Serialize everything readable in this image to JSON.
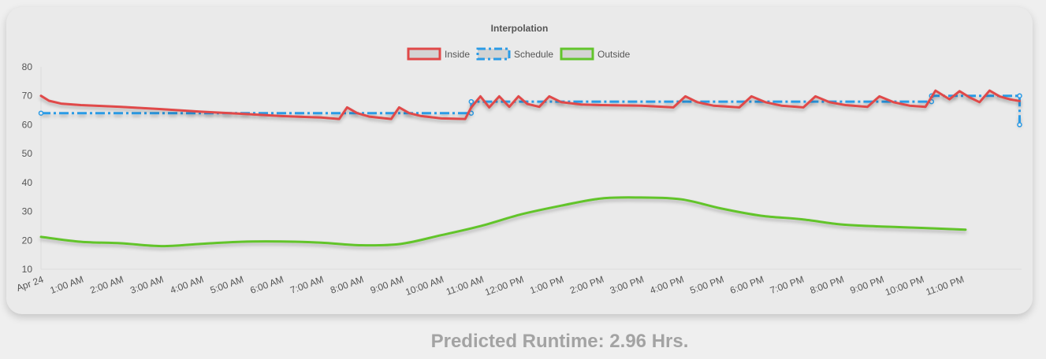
{
  "colors": {
    "inside": "#e04848",
    "schedule": "#2b9be6",
    "outside": "#62c42c",
    "background": "#eaeaea"
  },
  "footer": {
    "runtime_text": "Predicted Runtime: 2.96 Hrs."
  },
  "chart_data": {
    "type": "line",
    "title": "Interpolation",
    "legend_position": "top-center",
    "xlabel": "",
    "ylabel": "",
    "ylim": [
      10,
      80
    ],
    "yticks": [
      10,
      20,
      30,
      40,
      50,
      60,
      70,
      80
    ],
    "xlim": [
      0,
      24.5
    ],
    "xticks": [
      {
        "hour": 0,
        "label": "Apr 24"
      },
      {
        "hour": 1,
        "label": "1:00 AM"
      },
      {
        "hour": 2,
        "label": "2:00 AM"
      },
      {
        "hour": 3,
        "label": "3:00 AM"
      },
      {
        "hour": 4,
        "label": "4:00 AM"
      },
      {
        "hour": 5,
        "label": "5:00 AM"
      },
      {
        "hour": 6,
        "label": "6:00 AM"
      },
      {
        "hour": 7,
        "label": "7:00 AM"
      },
      {
        "hour": 8,
        "label": "8:00 AM"
      },
      {
        "hour": 9,
        "label": "9:00 AM"
      },
      {
        "hour": 10,
        "label": "10:00 AM"
      },
      {
        "hour": 11,
        "label": "11:00 AM"
      },
      {
        "hour": 12,
        "label": "12:00 PM"
      },
      {
        "hour": 13,
        "label": "1:00 PM"
      },
      {
        "hour": 14,
        "label": "2:00 PM"
      },
      {
        "hour": 15,
        "label": "3:00 PM"
      },
      {
        "hour": 16,
        "label": "4:00 PM"
      },
      {
        "hour": 17,
        "label": "5:00 PM"
      },
      {
        "hour": 18,
        "label": "6:00 PM"
      },
      {
        "hour": 19,
        "label": "7:00 PM"
      },
      {
        "hour": 20,
        "label": "8:00 PM"
      },
      {
        "hour": 21,
        "label": "9:00 PM"
      },
      {
        "hour": 22,
        "label": "10:00 PM"
      },
      {
        "hour": 23,
        "label": "11:00 PM"
      }
    ],
    "series": [
      {
        "name": "Inside",
        "style": "solid",
        "smooth": false,
        "points": [
          [
            0,
            70
          ],
          [
            0.2,
            68.3
          ],
          [
            0.5,
            67.3
          ],
          [
            1,
            66.8
          ],
          [
            2,
            66.2
          ],
          [
            3,
            65.4
          ],
          [
            4,
            64.5
          ],
          [
            5,
            63.8
          ],
          [
            6,
            63.0
          ],
          [
            7,
            62.5
          ],
          [
            7.45,
            62.0
          ],
          [
            7.65,
            66.0
          ],
          [
            7.9,
            64.0
          ],
          [
            8.2,
            62.8
          ],
          [
            8.75,
            62.0
          ],
          [
            8.95,
            66.0
          ],
          [
            9.2,
            64.0
          ],
          [
            9.5,
            63.0
          ],
          [
            10,
            62.2
          ],
          [
            10.6,
            62.0
          ],
          [
            10.75,
            66.0
          ],
          [
            10.98,
            69.8
          ],
          [
            11.2,
            66.0
          ],
          [
            11.45,
            69.8
          ],
          [
            11.7,
            66.2
          ],
          [
            11.93,
            69.8
          ],
          [
            12.15,
            67.2
          ],
          [
            12.45,
            66.2
          ],
          [
            12.7,
            69.8
          ],
          [
            13,
            67.8
          ],
          [
            13.5,
            67.0
          ],
          [
            14,
            66.8
          ],
          [
            15,
            66.6
          ],
          [
            15.8,
            66.0
          ],
          [
            16.1,
            69.8
          ],
          [
            16.4,
            67.8
          ],
          [
            16.8,
            66.6
          ],
          [
            17.45,
            66.0
          ],
          [
            17.75,
            69.8
          ],
          [
            18.1,
            67.8
          ],
          [
            18.5,
            66.6
          ],
          [
            19.05,
            66.0
          ],
          [
            19.35,
            69.8
          ],
          [
            19.7,
            67.8
          ],
          [
            20.1,
            66.8
          ],
          [
            20.65,
            66.2
          ],
          [
            20.95,
            69.8
          ],
          [
            21.3,
            67.8
          ],
          [
            21.7,
            66.6
          ],
          [
            22.1,
            66.2
          ],
          [
            22.35,
            71.8
          ],
          [
            22.7,
            68.8
          ],
          [
            22.95,
            71.6
          ],
          [
            23.2,
            69.5
          ],
          [
            23.45,
            67.8
          ],
          [
            23.7,
            71.8
          ],
          [
            23.95,
            69.8
          ],
          [
            24.2,
            68.8
          ],
          [
            24.45,
            68.2
          ]
        ]
      },
      {
        "name": "Schedule",
        "style": "dash-dot",
        "smooth": false,
        "points": [
          [
            0,
            64
          ],
          [
            10.75,
            64
          ],
          [
            10.75,
            68
          ],
          [
            22.25,
            68
          ],
          [
            22.25,
            70
          ],
          [
            24.45,
            70
          ],
          [
            24.45,
            60
          ]
        ]
      },
      {
        "name": "Outside",
        "style": "solid",
        "smooth": true,
        "points": [
          [
            0,
            21.2
          ],
          [
            1,
            19.5
          ],
          [
            2,
            19.0
          ],
          [
            3,
            18.0
          ],
          [
            4,
            18.8
          ],
          [
            5,
            19.5
          ],
          [
            6,
            19.6
          ],
          [
            7,
            19.2
          ],
          [
            8,
            18.3
          ],
          [
            9,
            18.8
          ],
          [
            10,
            21.8
          ],
          [
            11,
            25.0
          ],
          [
            12,
            29.0
          ],
          [
            13,
            32.0
          ],
          [
            14,
            34.5
          ],
          [
            15,
            34.8
          ],
          [
            16,
            34.2
          ],
          [
            17,
            31.0
          ],
          [
            18,
            28.5
          ],
          [
            19,
            27.3
          ],
          [
            20,
            25.5
          ],
          [
            21,
            24.8
          ],
          [
            22,
            24.3
          ],
          [
            23.1,
            23.7
          ]
        ]
      }
    ]
  }
}
